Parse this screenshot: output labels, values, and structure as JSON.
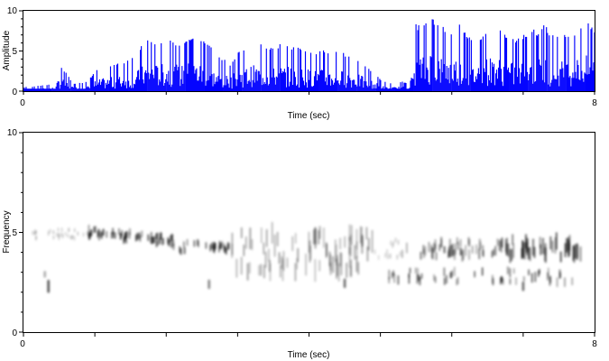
{
  "chart_data": [
    {
      "type": "area",
      "panel": "waveform",
      "xlabel": "Time (sec)",
      "ylabel": "Amplitude",
      "xlim": [
        0,
        8
      ],
      "ylim": [
        0,
        10
      ],
      "x_tick_labels": [
        "0",
        "8"
      ],
      "y_tick_labels": [
        "0",
        "5",
        "10"
      ],
      "color": "#0000ff",
      "grid": false,
      "series": [
        {
          "x": [
            0.0,
            0.25,
            0.45,
            0.5,
            0.7,
            0.9,
            1.0,
            1.1,
            1.3,
            1.5,
            1.6,
            1.7,
            1.8,
            1.9,
            2.0,
            2.1,
            2.2,
            2.3,
            2.4,
            2.5,
            2.6,
            2.7,
            2.8,
            2.9,
            3.0,
            3.1,
            3.2,
            3.3,
            3.4,
            3.5,
            3.6,
            3.7,
            3.8,
            3.9,
            4.0,
            4.1,
            4.2,
            4.3,
            4.4,
            4.5,
            4.6,
            4.7,
            4.8,
            4.9,
            5.0,
            5.1,
            5.2,
            5.3,
            5.4,
            5.5,
            5.6,
            5.7,
            5.8,
            5.9,
            6.0,
            6.1,
            6.2,
            6.3,
            6.4,
            6.5,
            6.6,
            6.7,
            6.8,
            6.9,
            7.0,
            7.1,
            7.2,
            7.3,
            7.4,
            7.5,
            7.6,
            7.7,
            7.8,
            7.9,
            8.0
          ],
          "values": [
            0.5,
            0.7,
            1.0,
            3.5,
            1.0,
            1.2,
            2.5,
            3.0,
            3.5,
            4.0,
            5.0,
            6.5,
            6.5,
            6.2,
            6.8,
            6.5,
            6.0,
            6.8,
            7.0,
            6.5,
            6.0,
            4.5,
            4.0,
            3.5,
            5.0,
            5.5,
            6.2,
            6.0,
            5.8,
            5.5,
            6.0,
            5.8,
            5.5,
            5.5,
            5.3,
            5.0,
            5.2,
            5.0,
            5.0,
            4.8,
            4.5,
            4.0,
            3.0,
            2.5,
            1.5,
            1.0,
            1.0,
            1.2,
            1.0,
            8.5,
            8.2,
            9.8,
            8.5,
            8.0,
            7.5,
            8.5,
            7.5,
            6.0,
            7.0,
            8.0,
            8.5,
            7.5,
            7.0,
            6.5,
            7.0,
            8.0,
            7.5,
            8.5,
            7.0,
            7.0,
            7.5,
            7.5,
            8.2,
            8.5,
            8.0
          ]
        }
      ]
    },
    {
      "type": "heatmap",
      "panel": "spectrogram",
      "xlabel": "Time (sec)",
      "ylabel": "Frequency",
      "xlim": [
        0,
        8
      ],
      "ylim": [
        0,
        10
      ],
      "x_tick_labels": [
        "0",
        "8"
      ],
      "y_tick_labels": [
        "0",
        "5",
        "10"
      ],
      "colormap": "grayscale-inverted",
      "grid": false
    }
  ]
}
